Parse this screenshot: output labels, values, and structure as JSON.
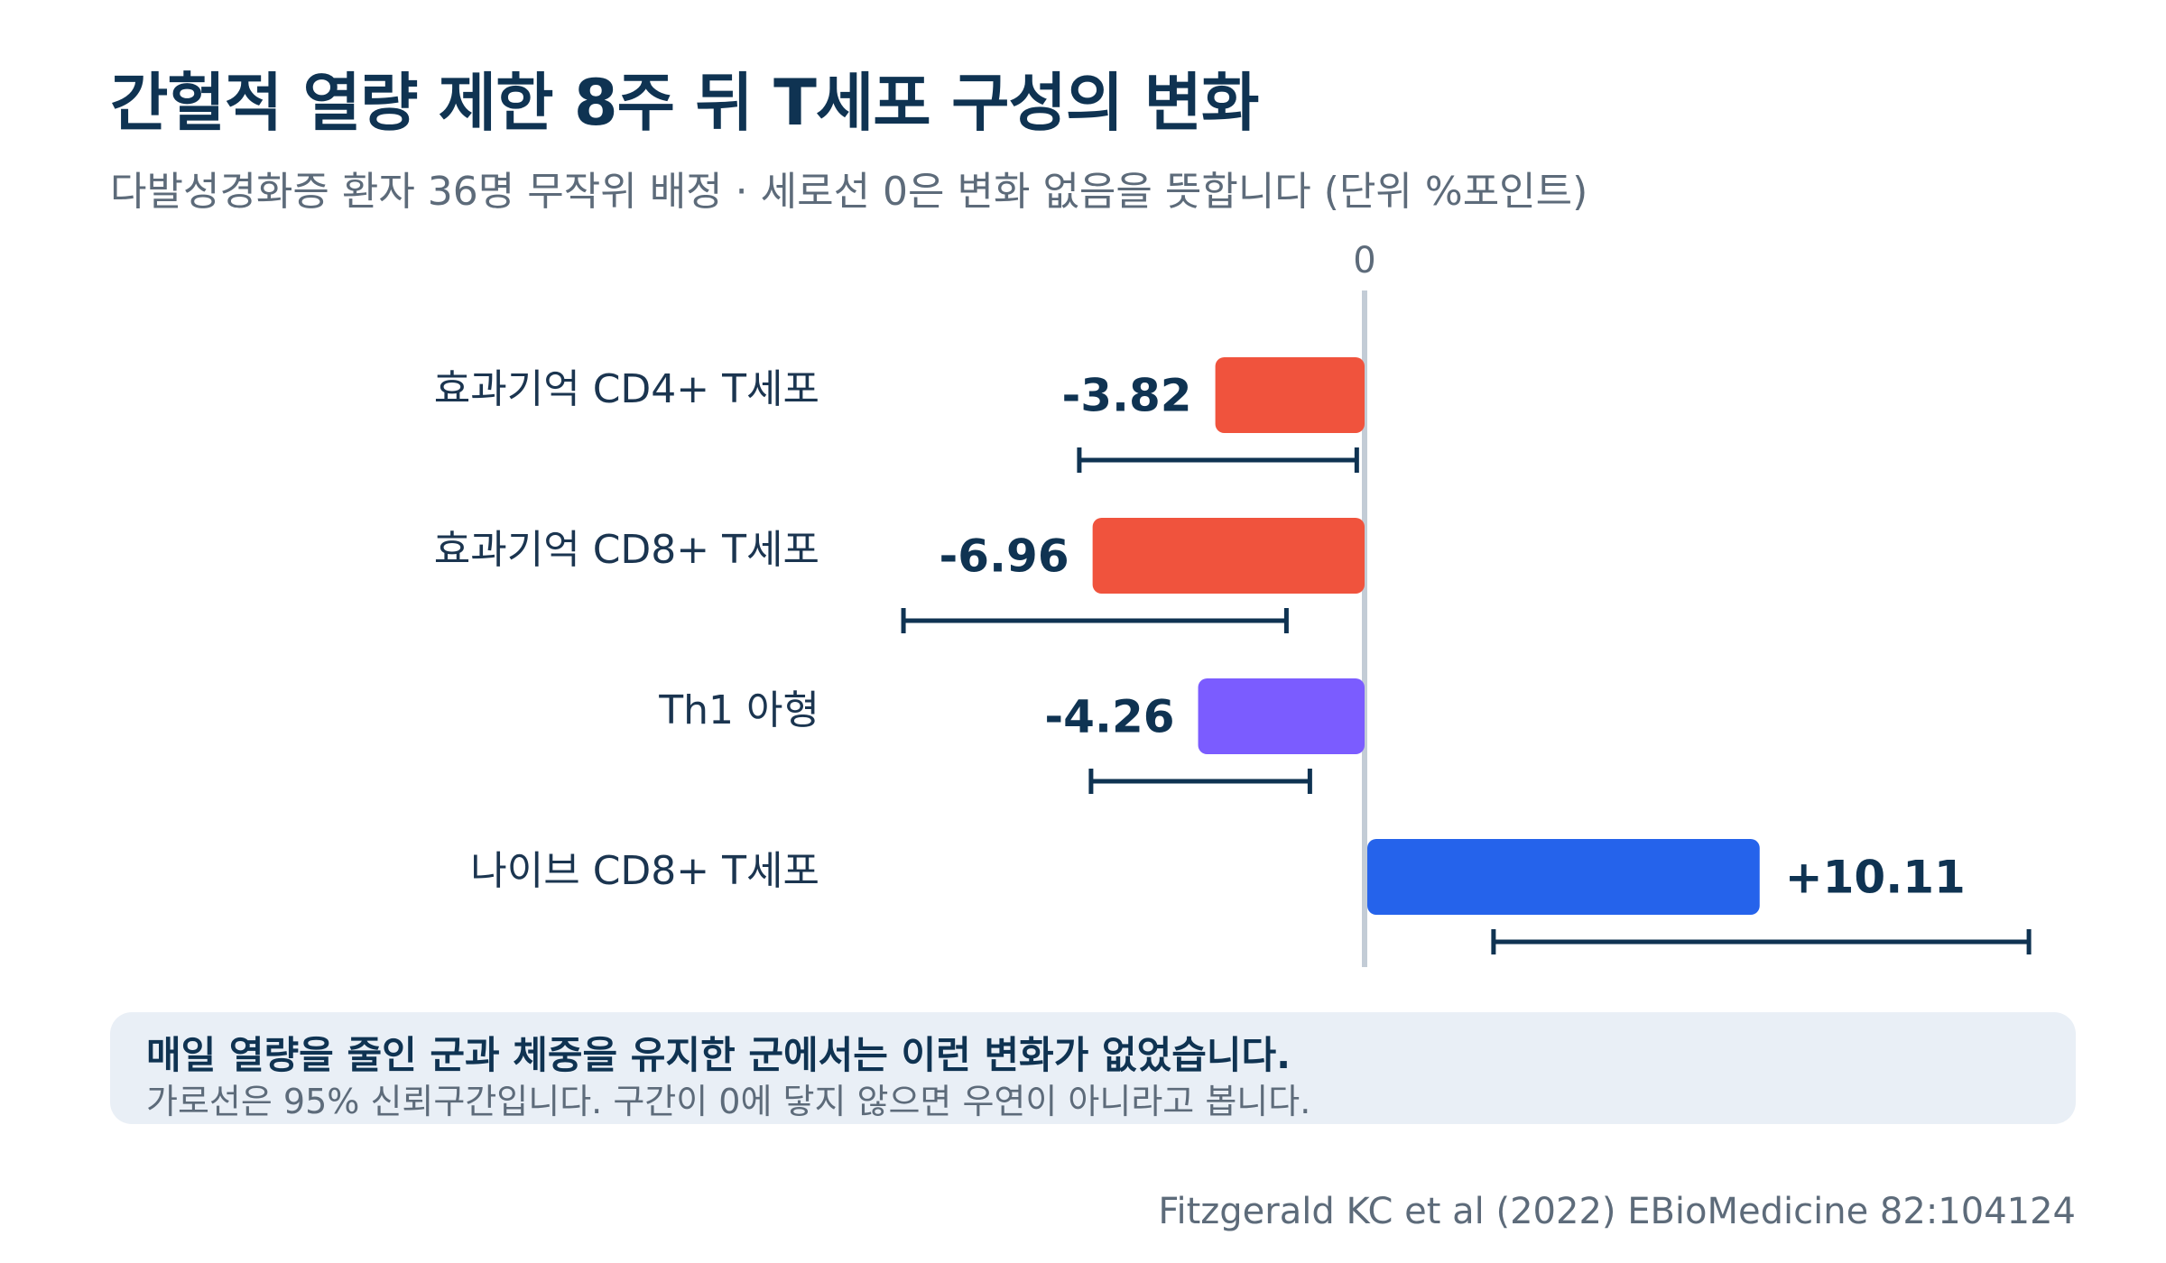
{
  "title": "간헐적 열량 제한 8주 뒤 T세포 구성의 변화",
  "subtitle": "다발성경화증 환자 36명 무작위 배정 · 세로선 0은 변화 없음을 뜻합니다 (단위 %포인트)",
  "chart_data": {
    "type": "bar",
    "orientation": "horizontal",
    "zero_label": "0",
    "categories": [
      "효과기억 CD4+ T세포",
      "효과기억 CD8+ T세포",
      "Th1 아형",
      "나이브 CD8+ T세포"
    ],
    "values": [
      -3.82,
      -6.96,
      -4.26,
      10.11
    ],
    "value_labels": [
      "-3.82",
      "-6.96",
      "-4.26",
      "+10.11"
    ],
    "ci_low": [
      -7.3,
      -11.8,
      -7.0,
      3.3
    ],
    "ci_high": [
      -0.2,
      -2.0,
      -1.4,
      17.0
    ],
    "colors": [
      "#f0533d",
      "#f0533d",
      "#7b5cff",
      "#2563eb"
    ],
    "xlim": [
      -13,
      18
    ],
    "grid": false
  },
  "note": {
    "main": "매일 열량을 줄인 군과 체중을 유지한 군에서는 이런 변화가 없었습니다.",
    "sub": "가로선은 95% 신뢰구간입니다. 구간이 0에 닿지 않으면 우연이 아니라고 봅니다."
  },
  "source": "Fitzgerald KC et al (2022) EBioMedicine 82:104124"
}
